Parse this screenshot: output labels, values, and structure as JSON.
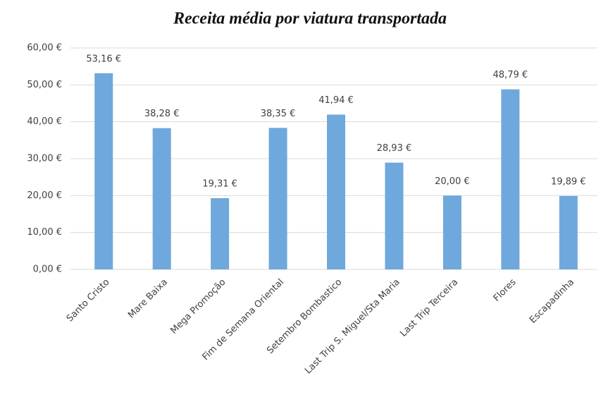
{
  "chart_data": {
    "type": "bar",
    "title": "Receita média por viatura transportada",
    "categories": [
      "Santo Cristo",
      "Mare Baixa",
      "Mega Promoção",
      "Fim de Semana Oriental",
      "Setembro Bombastico",
      "Last Trip S. Miguel/Sta Maria",
      "Last Trip Terceira",
      "Flores",
      "Escapadinha"
    ],
    "values": [
      53.16,
      38.28,
      19.31,
      38.35,
      41.94,
      28.93,
      20.0,
      48.79,
      19.89
    ],
    "value_labels": [
      "53,16 €",
      "38,28 €",
      "19,31 €",
      "38,35 €",
      "41,94 €",
      "28,93 €",
      "20,00 €",
      "48,79 €",
      "19,89 €"
    ],
    "color": "#6fa8dc",
    "ylim": [
      0,
      60
    ],
    "yticks": [
      {
        "value": 0,
        "label": "0,00 €"
      },
      {
        "value": 10,
        "label": "10,00 €"
      },
      {
        "value": 20,
        "label": "20,00 €"
      },
      {
        "value": 30,
        "label": "30,00 €"
      },
      {
        "value": 40,
        "label": "40,00 €"
      },
      {
        "value": 50,
        "label": "50,00 €"
      },
      {
        "value": 60,
        "label": "60,00 €"
      }
    ],
    "grid": true
  }
}
